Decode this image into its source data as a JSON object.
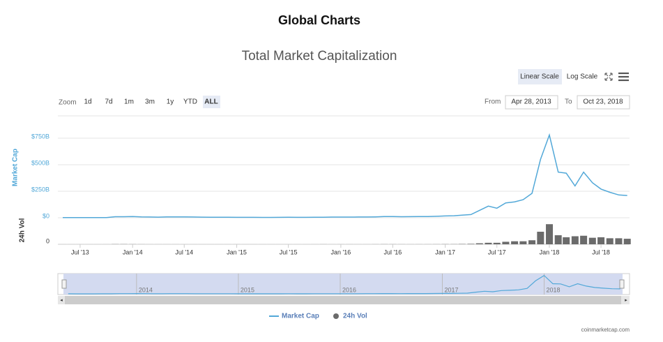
{
  "header": {
    "title": "Global Charts"
  },
  "controls": {
    "scales": [
      "Linear Scale",
      "Log Scale"
    ],
    "zoom_label": "Zoom",
    "zoom": [
      "1d",
      "7d",
      "1m",
      "3m",
      "1y",
      "YTD",
      "ALL"
    ],
    "from_label": "From",
    "from": "Apr 28, 2013",
    "to_label": "To",
    "to": "Oct 23, 2018"
  },
  "chart_data": {
    "type": "line",
    "title": "Total Market Capitalization",
    "y_label": "Market Cap",
    "y2_label": "24h Vol",
    "x": [
      "2013-05",
      "2013-06",
      "2013-07",
      "2013-08",
      "2013-09",
      "2013-10",
      "2013-11",
      "2013-12",
      "2014-01",
      "2014-02",
      "2014-03",
      "2014-04",
      "2014-05",
      "2014-06",
      "2014-07",
      "2014-08",
      "2014-09",
      "2014-10",
      "2014-11",
      "2014-12",
      "2015-01",
      "2015-02",
      "2015-03",
      "2015-04",
      "2015-05",
      "2015-06",
      "2015-07",
      "2015-08",
      "2015-09",
      "2015-10",
      "2015-11",
      "2015-12",
      "2016-01",
      "2016-02",
      "2016-03",
      "2016-04",
      "2016-05",
      "2016-06",
      "2016-07",
      "2016-08",
      "2016-09",
      "2016-10",
      "2016-11",
      "2016-12",
      "2017-01",
      "2017-02",
      "2017-03",
      "2017-04",
      "2017-05",
      "2017-06",
      "2017-07",
      "2017-08",
      "2017-09",
      "2017-10",
      "2017-11",
      "2017-12",
      "2018-01",
      "2018-02",
      "2018-03",
      "2018-04",
      "2018-05",
      "2018-06",
      "2018-07",
      "2018-08",
      "2018-09",
      "2018-10"
    ],
    "series": [
      {
        "name": "Market Cap",
        "color": "#52a8d8",
        "values": [
          1.5,
          1.2,
          1.1,
          1.3,
          1.6,
          2.2,
          10,
          10,
          11,
          8,
          7,
          6,
          8,
          8,
          8,
          7,
          6,
          5.5,
          5.5,
          5,
          4,
          4,
          4,
          3.5,
          3.5,
          3.7,
          4.5,
          4,
          3.7,
          4.5,
          5.5,
          6.5,
          6.5,
          6.5,
          7,
          7.5,
          8.5,
          11,
          11,
          10,
          10.5,
          11,
          12,
          14,
          17,
          19,
          25,
          30,
          70,
          110,
          90,
          140,
          150,
          170,
          230,
          550,
          780,
          430,
          420,
          300,
          430,
          330,
          270,
          240,
          215,
          210
        ]
      },
      {
        "name": "24h Vol",
        "color": "#6b6b6b",
        "axis": "y2",
        "values": [
          0.02,
          0.02,
          0.02,
          0.02,
          0.02,
          0.05,
          0.3,
          0.3,
          0.2,
          0.1,
          0.05,
          0.05,
          0.05,
          0.05,
          0.03,
          0.03,
          0.03,
          0.03,
          0.03,
          0.03,
          0.05,
          0.03,
          0.03,
          0.03,
          0.02,
          0.02,
          0.03,
          0.03,
          0.03,
          0.05,
          0.1,
          0.06,
          0.08,
          0.08,
          0.06,
          0.06,
          0.1,
          0.2,
          0.15,
          0.1,
          0.08,
          0.1,
          0.1,
          0.15,
          0.3,
          0.3,
          0.6,
          0.9,
          2,
          3,
          3,
          5,
          6,
          6,
          8,
          25,
          40,
          18,
          14,
          16,
          17,
          13,
          14,
          12,
          12,
          11
        ]
      }
    ],
    "xlim": [
      "2013-04-28",
      "2018-10-23"
    ],
    "xticks": [
      {
        "value": "2013-07",
        "label": "Jul '13"
      },
      {
        "value": "2014-01",
        "label": "Jan '14"
      },
      {
        "value": "2014-07",
        "label": "Jul '14"
      },
      {
        "value": "2015-01",
        "label": "Jan '15"
      },
      {
        "value": "2015-07",
        "label": "Jul '15"
      },
      {
        "value": "2016-01",
        "label": "Jan '16"
      },
      {
        "value": "2016-07",
        "label": "Jul '16"
      },
      {
        "value": "2017-01",
        "label": "Jan '17"
      },
      {
        "value": "2017-07",
        "label": "Jul '17"
      },
      {
        "value": "2018-01",
        "label": "Jan '18"
      },
      {
        "value": "2018-07",
        "label": "Jul '18"
      }
    ],
    "ylim": [
      0,
      960
    ],
    "yticks": [
      {
        "value": 0,
        "label": "$0"
      },
      {
        "value": 250,
        "label": "$250B"
      },
      {
        "value": 500,
        "label": "$500B"
      },
      {
        "value": 750,
        "label": "$750B"
      }
    ],
    "y2lim": [
      0,
      50
    ],
    "y2ticks": [
      0
    ],
    "grid": true,
    "navigator": {
      "xticks": [
        {
          "value": "2014-01",
          "label": "2014"
        },
        {
          "value": "2015-01",
          "label": "2015"
        },
        {
          "value": "2016-01",
          "label": "2016"
        },
        {
          "value": "2017-01",
          "label": "2017"
        },
        {
          "value": "2018-01",
          "label": "2018"
        }
      ]
    },
    "credit": "coinmarketcap.com"
  }
}
